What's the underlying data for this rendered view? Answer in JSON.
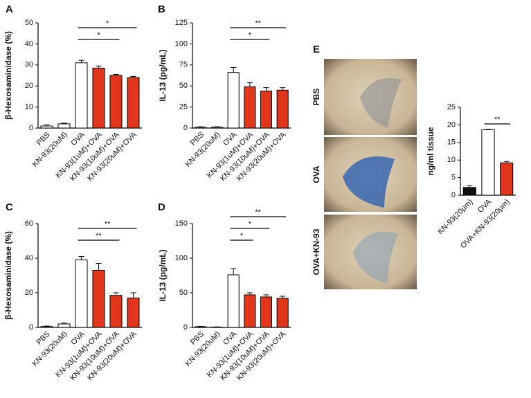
{
  "chart_data": [
    {
      "type": "bar",
      "panel_label": "A",
      "ylabel": "β-Hexosaminidase (%)",
      "categories": [
        "PBS",
        "KN-93(20uM)",
        "OVA",
        "KN-93(1uM)+OVA",
        "KN-93(10uM)+OVA",
        "KN-93(20uM)+OVA"
      ],
      "values": [
        1,
        2,
        31,
        28.5,
        25,
        24
      ],
      "errors": [
        0.5,
        0.3,
        1.2,
        1,
        0.5,
        0.5
      ],
      "colors": [
        "#ffffff",
        "#ffffff",
        "#ffffff",
        "#e2361c",
        "#e2361c",
        "#e2361c"
      ],
      "ylim": [
        0,
        50
      ],
      "yticks": [
        0,
        10,
        20,
        30,
        40,
        50
      ],
      "annotations": [
        {
          "label": "*",
          "between": [
            "OVA",
            "KN-93(10uM)+OVA"
          ]
        },
        {
          "label": "*",
          "between": [
            "OVA",
            "KN-93(20uM)+OVA"
          ]
        }
      ]
    },
    {
      "type": "bar",
      "panel_label": "B",
      "ylabel": "IL-13 (pg/mL)",
      "categories": [
        "PBS",
        "KN-93(20uM)",
        "OVA",
        "KN-93(1uM)+OVA",
        "KN-93(10uM)+OVA",
        "KN-93(20uM)+OVA"
      ],
      "values": [
        1,
        1,
        66,
        49,
        44,
        45
      ],
      "errors": [
        0.5,
        0.5,
        6,
        5,
        4,
        3
      ],
      "colors": [
        "#ffffff",
        "#ffffff",
        "#ffffff",
        "#e2361c",
        "#e2361c",
        "#e2361c"
      ],
      "ylim": [
        0,
        125
      ],
      "yticks": [
        0,
        25,
        50,
        75,
        100,
        125
      ],
      "annotations": [
        {
          "label": "*",
          "between": [
            "OVA",
            "KN-93(10uM)+OVA"
          ]
        },
        {
          "label": "**",
          "between": [
            "OVA",
            "KN-93(20uM)+OVA"
          ]
        }
      ]
    },
    {
      "type": "bar",
      "panel_label": "C",
      "ylabel": "β-Hexosaminidase (%)",
      "categories": [
        "PBS",
        "KN-93(20uM)",
        "OVA",
        "KN-93(1uM)+OVA",
        "KN-93(10uM)+OVA",
        "KN-93(20uM)+OVA"
      ],
      "values": [
        0.5,
        2,
        39,
        33,
        18.5,
        17
      ],
      "errors": [
        0.3,
        0.5,
        2,
        4,
        1.5,
        3
      ],
      "colors": [
        "#ffffff",
        "#ffffff",
        "#ffffff",
        "#e2361c",
        "#e2361c",
        "#e2361c"
      ],
      "ylim": [
        0,
        60
      ],
      "yticks": [
        0,
        20,
        40,
        60
      ],
      "annotations": [
        {
          "label": "**",
          "between": [
            "OVA",
            "KN-93(10uM)+OVA"
          ]
        },
        {
          "label": "**",
          "between": [
            "OVA",
            "KN-93(20uM)+OVA"
          ]
        }
      ]
    },
    {
      "type": "bar",
      "panel_label": "D",
      "ylabel": "IL-13 (pg/mL)",
      "categories": [
        "PBS",
        "KN-93(20uM)",
        "OVA",
        "KN-93(1uM)+OVA",
        "KN-93(10uM)+OVA",
        "KN-93(20uM)+OVA"
      ],
      "values": [
        1,
        0.5,
        76,
        47,
        44,
        42
      ],
      "errors": [
        0.5,
        0.3,
        9,
        3,
        3,
        3
      ],
      "colors": [
        "#ffffff",
        "#ffffff",
        "#ffffff",
        "#e2361c",
        "#e2361c",
        "#e2361c"
      ],
      "ylim": [
        0,
        150
      ],
      "yticks": [
        0,
        50,
        100,
        150
      ],
      "annotations": [
        {
          "label": "*",
          "between": [
            "OVA",
            "KN-93(1uM)+OVA"
          ]
        },
        {
          "label": "*",
          "between": [
            "OVA",
            "KN-93(10uM)+OVA"
          ]
        },
        {
          "label": "**",
          "between": [
            "OVA",
            "KN-93(20uM)+OVA"
          ]
        }
      ]
    },
    {
      "type": "bar",
      "panel_label": "E",
      "ylabel": "ng/ml tissue",
      "image_labels": [
        "PBS",
        "OVA",
        "OVA+KN-93"
      ],
      "categories": [
        "KN-93(20μm)",
        "OVA",
        "OVA+KN-93(20μm)"
      ],
      "values": [
        2.2,
        18.6,
        9.2
      ],
      "errors": [
        0.5,
        0.1,
        0.4
      ],
      "colors": [
        "#111111",
        "#ffffff",
        "#e2361c"
      ],
      "ylim": [
        0,
        25
      ],
      "yticks": [
        0,
        5,
        10,
        15,
        20,
        25
      ],
      "annotations": [
        {
          "label": "**",
          "between": [
            "OVA",
            "OVA+KN-93(20μm)"
          ]
        }
      ]
    }
  ]
}
